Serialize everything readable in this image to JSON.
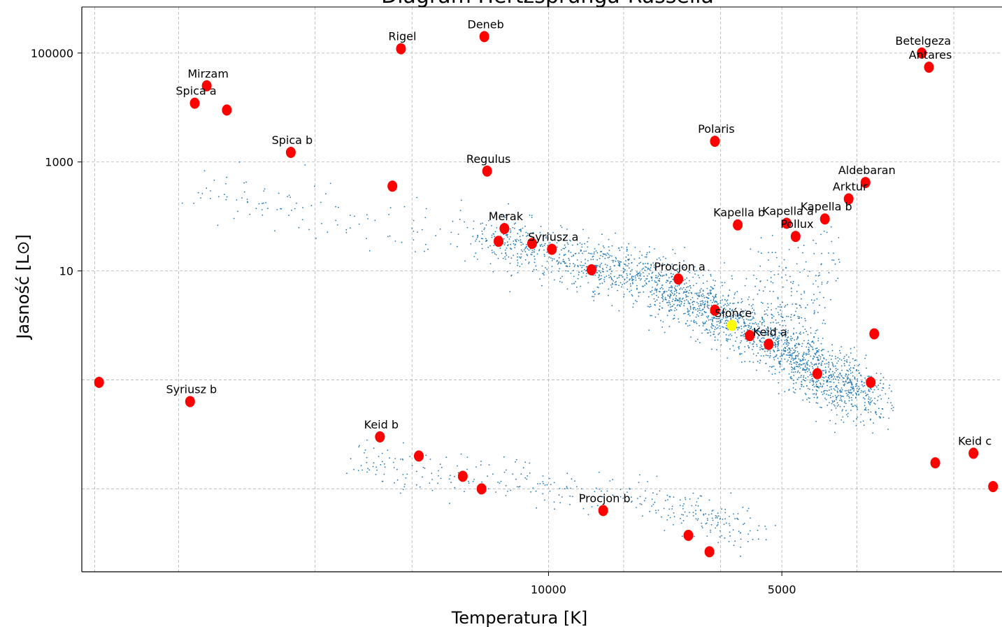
{
  "chart_data": {
    "type": "scatter",
    "title": "Diagram Hertzsprunga-Russella",
    "xlabel": "Temperatura [K]",
    "ylabel": "Jasność [L⊙]",
    "x_scale": "log",
    "x_reversed": true,
    "y_scale": "log",
    "xlim": [
      40000,
      2600
    ],
    "ylim": [
      3e-05,
      700000
    ],
    "xticks": [
      {
        "value": 10000,
        "label": "10000"
      },
      {
        "value": 5000,
        "label": "5000"
      }
    ],
    "yticks": [
      {
        "value": 100000,
        "label": "100000"
      },
      {
        "value": 1000,
        "label": "1000"
      },
      {
        "value": 10,
        "label": "10"
      }
    ],
    "grid": true,
    "background_color": "#ffffff",
    "grid_color": "#b0b0b0",
    "series": [
      {
        "color": "#1f77b4",
        "marker": "dot",
        "density_regions": [
          {
            "region": "main sequence",
            "path": [
              [
                12000,
                40
              ],
              [
                9000,
                15
              ],
              [
                7000,
                5
              ],
              [
                6000,
                1.6
              ],
              [
                5200,
                0.6
              ],
              [
                4400,
                0.12
              ],
              [
                3800,
                0.04
              ]
            ],
            "spread": 0.25,
            "count": 2400
          },
          {
            "region": "main sequence (upper)",
            "path": [
              [
                28000,
                300
              ],
              [
                20000,
                120
              ],
              [
                15000,
                50
              ],
              [
                12000,
                40
              ]
            ],
            "spread": 0.25,
            "count": 120
          },
          {
            "region": "white dwarfs",
            "path": [
              [
                18000,
                0.0035
              ],
              [
                14000,
                0.0018
              ],
              [
                10000,
                0.0011
              ],
              [
                8000,
                0.0007
              ],
              [
                6500,
                0.0004
              ],
              [
                5500,
                0.00015
              ]
            ],
            "spread": 0.18,
            "count": 350
          },
          {
            "region": "giants",
            "path": [
              [
                5200,
                20
              ],
              [
                5000,
                3
              ],
              [
                4800,
                0.6
              ],
              [
                4400,
                60
              ]
            ],
            "spread": 0.2,
            "count": 160
          }
        ]
      },
      {
        "color": "#ff0000",
        "marker": "circle",
        "points": [
          {
            "x": 12100,
            "y": 200000,
            "label": "Deneb"
          },
          {
            "x": 15500,
            "y": 120000,
            "label": "Rigel"
          },
          {
            "x": 3300,
            "y": 100000,
            "label": "Betelgeza"
          },
          {
            "x": 3230,
            "y": 55000,
            "label": "Antares"
          },
          {
            "x": 27600,
            "y": 25000,
            "label": "Mirzam"
          },
          {
            "x": 26000,
            "y": 9000,
            "label": ""
          },
          {
            "x": 28600,
            "y": 12000,
            "label": "Spica a"
          },
          {
            "x": 21500,
            "y": 1500,
            "label": "Spica b"
          },
          {
            "x": 6100,
            "y": 2400,
            "label": "Polaris"
          },
          {
            "x": 3900,
            "y": 420,
            "label": "Aldebaran"
          },
          {
            "x": 4100,
            "y": 210,
            "label": "Arktur"
          },
          {
            "x": 4930,
            "y": 75,
            "label": "Kapella a"
          },
          {
            "x": 4400,
            "y": 90,
            "label": "Kapella b"
          },
          {
            "x": 5700,
            "y": 70,
            "label": "Kapella b"
          },
          {
            "x": 4800,
            "y": 43,
            "label": "Pollux"
          },
          {
            "x": 12000,
            "y": 680,
            "label": "Regulus"
          },
          {
            "x": 15900,
            "y": 360,
            "label": ""
          },
          {
            "x": 11400,
            "y": 60,
            "label": "Merak"
          },
          {
            "x": 11600,
            "y": 35,
            "label": ""
          },
          {
            "x": 10500,
            "y": 32,
            "label": ""
          },
          {
            "x": 9900,
            "y": 25,
            "label": "Syriusz a"
          },
          {
            "x": 8800,
            "y": 10.5,
            "label": ""
          },
          {
            "x": 6800,
            "y": 7.1,
            "label": "Procjon a"
          },
          {
            "x": 6100,
            "y": 1.9,
            "label": ""
          },
          {
            "x": 5500,
            "y": 0.65,
            "label": ""
          },
          {
            "x": 5200,
            "y": 0.45,
            "label": "Keid a"
          },
          {
            "x": 4500,
            "y": 0.13,
            "label": ""
          },
          {
            "x": 3840,
            "y": 0.09,
            "label": ""
          },
          {
            "x": 3800,
            "y": 0.7,
            "label": ""
          },
          {
            "x": 38000,
            "y": 0.09,
            "label": ""
          },
          {
            "x": 29000,
            "y": 0.04,
            "label": "Syriusz b"
          },
          {
            "x": 16500,
            "y": 0.009,
            "label": "Keid b"
          },
          {
            "x": 14700,
            "y": 0.004,
            "label": ""
          },
          {
            "x": 12900,
            "y": 0.0017,
            "label": ""
          },
          {
            "x": 12200,
            "y": 0.001,
            "label": ""
          },
          {
            "x": 8500,
            "y": 0.0004,
            "label": "Procjon b"
          },
          {
            "x": 6600,
            "y": 0.00014,
            "label": ""
          },
          {
            "x": 6200,
            "y": 7e-05,
            "label": ""
          },
          {
            "x": 2830,
            "y": 0.0045,
            "label": "Keid c"
          },
          {
            "x": 3170,
            "y": 0.003,
            "label": ""
          },
          {
            "x": 2670,
            "y": 0.0011,
            "label": ""
          }
        ]
      },
      {
        "color": "#ffff00",
        "marker": "circle",
        "points": [
          {
            "x": 5800,
            "y": 1.0,
            "label": "Słońce"
          }
        ]
      }
    ]
  }
}
